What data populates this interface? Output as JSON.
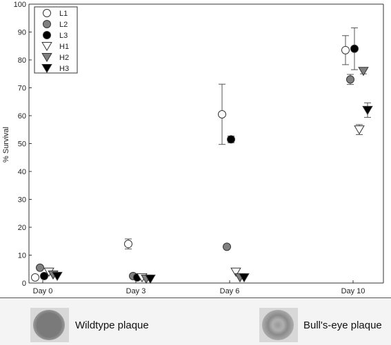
{
  "chart_data": {
    "type": "scatter",
    "title": "",
    "xlabel": "",
    "ylabel": "% Survival",
    "categories": [
      "Day 0",
      "Day 3",
      "Day 6",
      "Day 10"
    ],
    "ylim": [
      0,
      100
    ],
    "yticks": [
      0,
      10,
      20,
      30,
      40,
      50,
      60,
      70,
      80,
      90,
      100
    ],
    "legend_position": "top-left",
    "grid": false,
    "series": [
      {
        "name": "L1",
        "marker": "circle",
        "fill": "#ffffff",
        "values": [
          2,
          14,
          60.5,
          83.5
        ],
        "errors": [
          0,
          1.8,
          10.8,
          5.2
        ]
      },
      {
        "name": "L2",
        "marker": "circle",
        "fill": "#808080",
        "values": [
          5.5,
          2.5,
          13,
          73
        ],
        "errors": [
          0,
          0,
          0,
          1.8
        ]
      },
      {
        "name": "L3",
        "marker": "circle",
        "fill": "#000000",
        "values": [
          2.5,
          2,
          51.5,
          84
        ],
        "errors": [
          0,
          0,
          1.2,
          7.5
        ]
      },
      {
        "name": "H1",
        "marker": "triangle-down",
        "fill": "#ffffff",
        "values": [
          4,
          2,
          4,
          55
        ],
        "errors": [
          0,
          0,
          0,
          1.8
        ]
      },
      {
        "name": "H2",
        "marker": "triangle-down",
        "fill": "#808080",
        "values": [
          3,
          1.5,
          2,
          76
        ],
        "errors": [
          0,
          0,
          0,
          1
        ]
      },
      {
        "name": "H3",
        "marker": "triangle-down",
        "fill": "#000000",
        "values": [
          2.5,
          1.5,
          2,
          62
        ],
        "errors": [
          0,
          0,
          0,
          2.6
        ]
      }
    ]
  },
  "legend_items": [
    {
      "name": "L1",
      "marker": "circle",
      "fill": "#ffffff"
    },
    {
      "name": "L2",
      "marker": "circle",
      "fill": "#808080"
    },
    {
      "name": "L3",
      "marker": "circle",
      "fill": "#000000"
    },
    {
      "name": "H1",
      "marker": "triangle-down",
      "fill": "#ffffff"
    },
    {
      "name": "H2",
      "marker": "triangle-down",
      "fill": "#808080"
    },
    {
      "name": "H3",
      "marker": "triangle-down",
      "fill": "#000000"
    }
  ],
  "plaques": {
    "wildtype": {
      "label": "Wildtype plaque",
      "color": "#7a7a7a"
    },
    "bullseye": {
      "label": "Bull's-eye plaque",
      "color": "#9a9a9a"
    }
  }
}
